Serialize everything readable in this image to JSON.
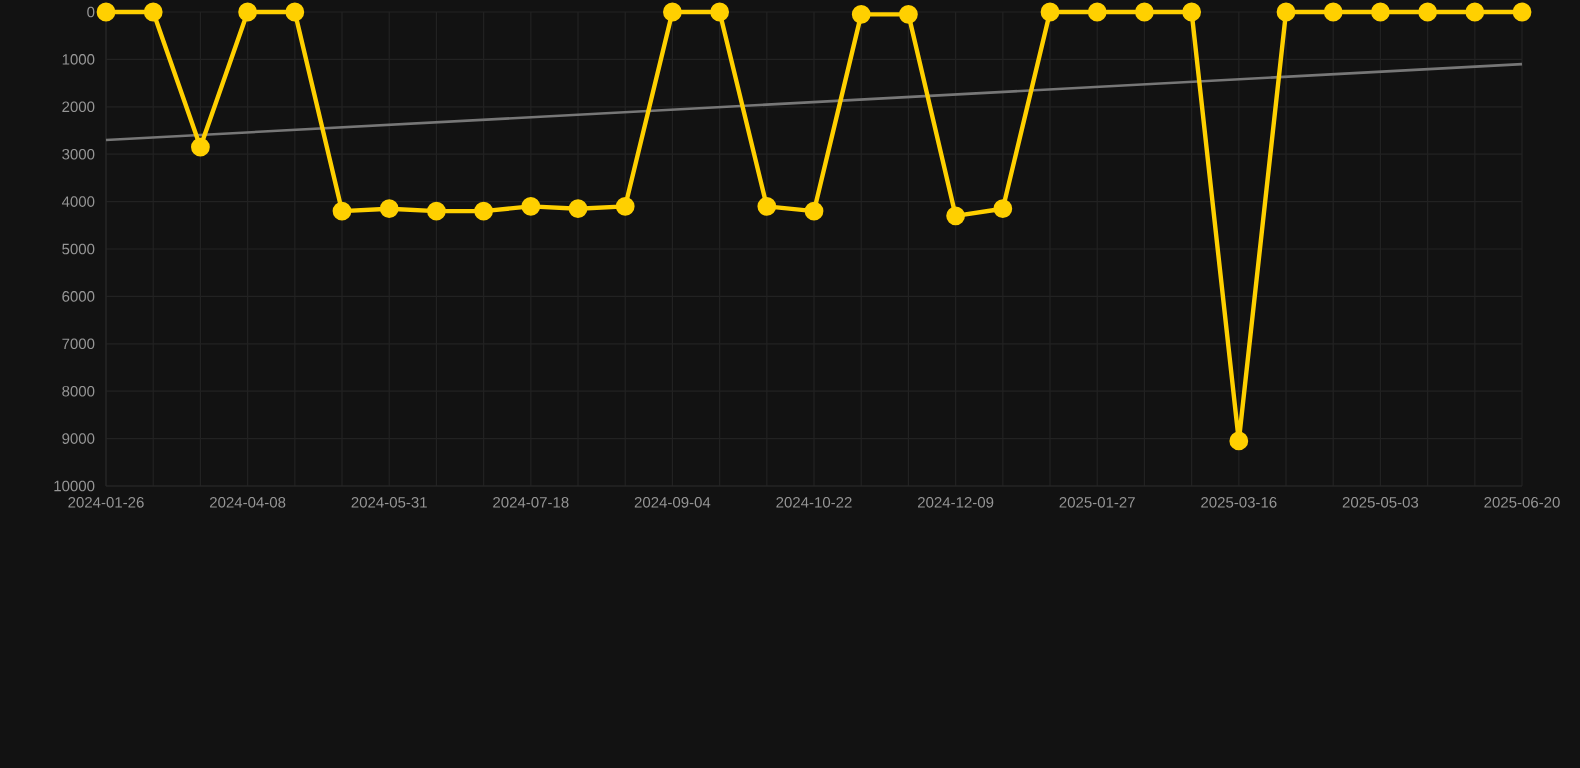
{
  "chart_data": {
    "type": "line",
    "categories": [
      "2024-01-26",
      null,
      null,
      "2024-04-08",
      null,
      null,
      "2024-05-31",
      null,
      null,
      "2024-07-18",
      null,
      null,
      "2024-09-04",
      null,
      null,
      "2024-10-22",
      null,
      null,
      "2024-12-09",
      null,
      null,
      "2025-01-27",
      null,
      null,
      "2025-03-16",
      null,
      null,
      "2025-05-03",
      null,
      null,
      "2025-06-20"
    ],
    "series": [
      {
        "color": "#ffd000",
        "marker": "circle",
        "values": [
          0,
          0,
          2850,
          0,
          0,
          4200,
          4150,
          4200,
          4200,
          4100,
          4150,
          4100,
          0,
          0,
          4100,
          4200,
          50,
          50,
          4300,
          4150,
          0,
          0,
          0,
          0,
          9050,
          0,
          0,
          0,
          0,
          0,
          0
        ]
      },
      {
        "color": "#777777",
        "marker": "none",
        "values": [
          2700,
          null,
          null,
          null,
          null,
          null,
          null,
          null,
          null,
          null,
          null,
          null,
          null,
          null,
          null,
          null,
          null,
          null,
          null,
          null,
          null,
          null,
          null,
          null,
          null,
          null,
          null,
          null,
          null,
          null,
          1100
        ]
      }
    ],
    "ylim": [
      10000,
      0
    ],
    "yticks": [
      0,
      1000,
      2000,
      3000,
      4000,
      5000,
      6000,
      7000,
      8000,
      9000,
      10000
    ],
    "grid": true,
    "line_style": "solid"
  }
}
